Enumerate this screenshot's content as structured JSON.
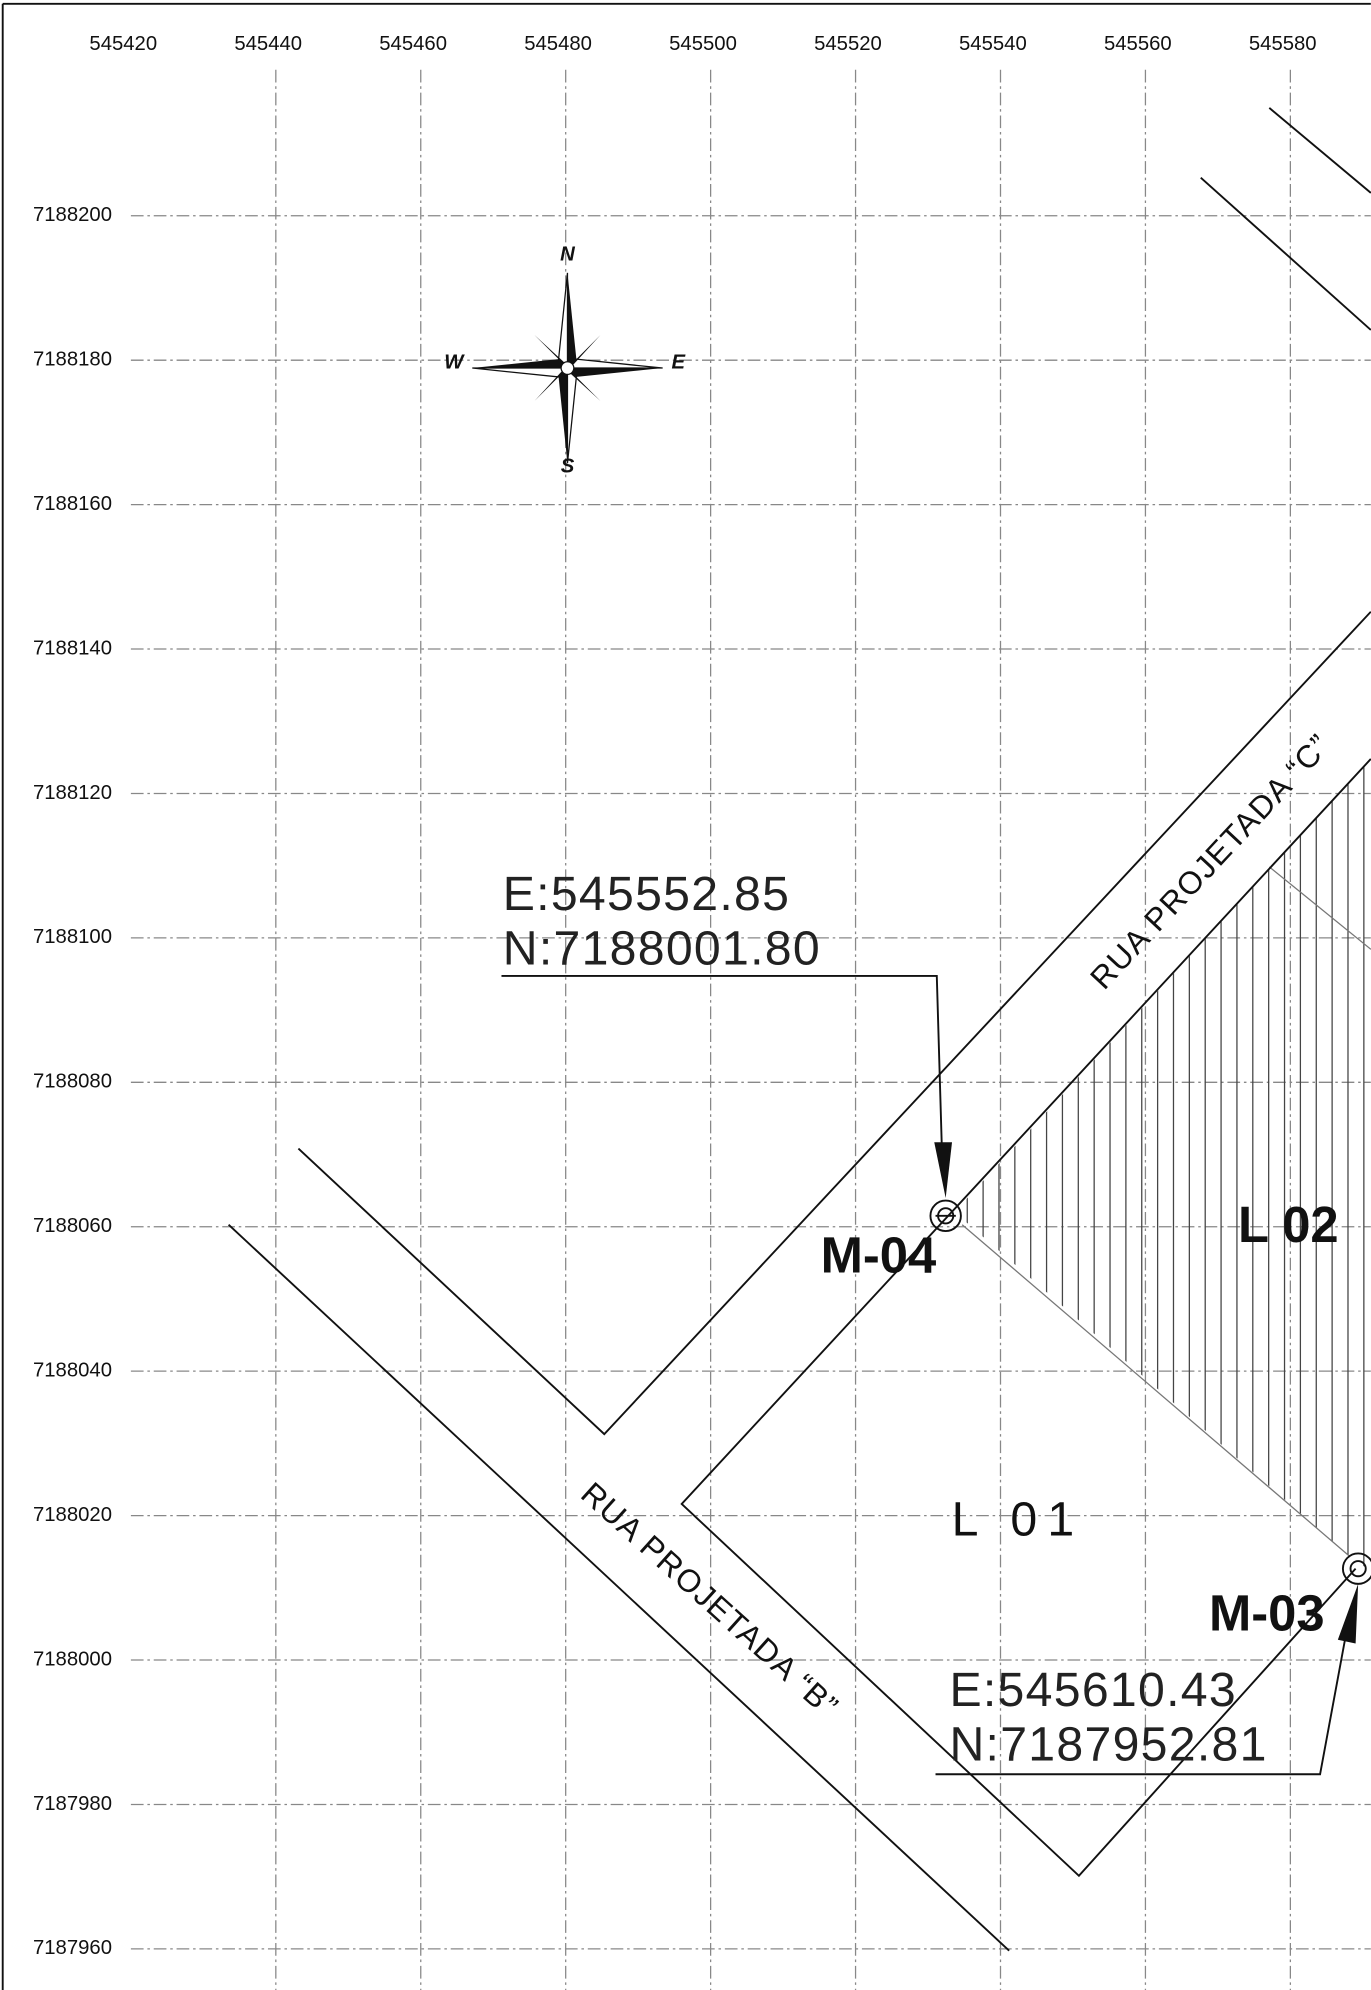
{
  "axes": {
    "x_labels": [
      545420,
      545440,
      545460,
      545480,
      545500,
      545520,
      545540,
      545560,
      545580
    ],
    "y_labels": [
      7188200,
      7188180,
      7188160,
      7188140,
      7188120,
      7188100,
      7188080,
      7188060,
      7188040,
      7188020,
      7188000,
      7187980,
      7187960
    ]
  },
  "compass": {
    "n": "N",
    "e": "E",
    "s": "S",
    "w": "W"
  },
  "roads": [
    "RUA PROJETADA “C”",
    "RUA PROJETADA “B”"
  ],
  "lots": [
    "L 02",
    "L 01"
  ],
  "markers": [
    {
      "label": "M-04",
      "easting": "E:545552.85",
      "northing": "N:7188001.80"
    },
    {
      "label": "M-03",
      "easting": "E:545610.43",
      "northing": "N:7187952.81"
    }
  ]
}
